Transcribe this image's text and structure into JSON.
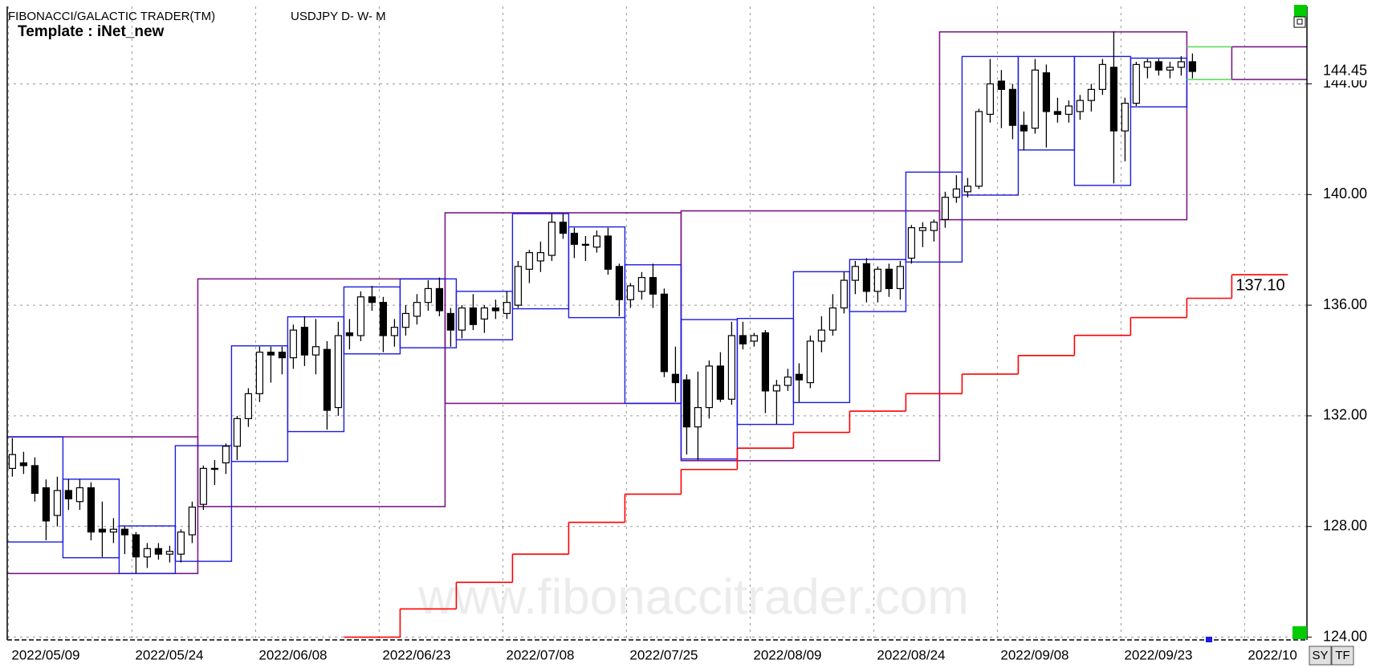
{
  "chart_data": {
    "type": "candlestick",
    "title": "FIBONACCI/GALACTIC TRADER(TM)",
    "symbol": "USDJPY D- W- M",
    "template": "Template : iNet_new",
    "watermark": "www.fibonaccitrader.com",
    "categories": [
      "2022/05/09",
      null,
      null,
      null,
      null,
      null,
      null,
      null,
      null,
      null,
      null,
      "2022/05/24",
      null,
      null,
      null,
      null,
      null,
      null,
      null,
      null,
      null,
      null,
      "2022/06/08",
      null,
      null,
      null,
      null,
      null,
      null,
      null,
      null,
      null,
      null,
      "2022/06/23",
      null,
      null,
      null,
      null,
      null,
      null,
      null,
      null,
      null,
      null,
      "2022/07/08",
      null,
      null,
      null,
      null,
      null,
      null,
      null,
      null,
      null,
      null,
      "2022/07/25",
      null,
      null,
      null,
      null,
      null,
      null,
      null,
      null,
      null,
      null,
      "2022/08/09",
      null,
      null,
      null,
      null,
      null,
      null,
      null,
      null,
      null,
      null,
      "2022/08/24",
      null,
      null,
      null,
      null,
      null,
      null,
      null,
      null,
      null,
      null,
      "2022/09/08",
      null,
      null,
      null,
      null,
      null,
      null,
      null,
      null,
      null,
      null,
      "2022/09/23",
      null,
      null,
      null,
      null,
      null,
      null,
      null,
      null,
      null,
      null,
      "2022/10",
      null,
      null,
      null,
      null,
      null
    ],
    "open": [
      130.1,
      130.3,
      130.2,
      129.4,
      128.4,
      129.3,
      128.9,
      129.4,
      127.9,
      127.8,
      127.9,
      127.7,
      126.9,
      127.2,
      127.0,
      127.0,
      127.7,
      128.8,
      130.1,
      130.3,
      130.9,
      131.9,
      132.8,
      134.3,
      134.3,
      134.1,
      135.2,
      134.2,
      134.4,
      132.3,
      135.0,
      134.9,
      136.3,
      136.1,
      134.9,
      135.2,
      135.6,
      136.1,
      136.6,
      135.7,
      135.1,
      135.9,
      135.5,
      135.9,
      135.7,
      136.0,
      137.3,
      137.6,
      137.8,
      139.0,
      138.6,
      138.2,
      138.1,
      138.5,
      137.4,
      136.2,
      136.5,
      137.0,
      136.4,
      133.5,
      133.3,
      131.6,
      132.3,
      133.8,
      132.6,
      134.9,
      134.7,
      135.0,
      132.9,
      133.1,
      133.5,
      133.2,
      134.7,
      135.1,
      135.9,
      136.9,
      137.5,
      136.5,
      137.3,
      136.6,
      137.7,
      138.7,
      138.7,
      139.1,
      139.9,
      140.1,
      140.3,
      142.9,
      144.1,
      143.8,
      142.5,
      142.4,
      144.4,
      143.0,
      142.9,
      143.0,
      143.4,
      143.8,
      144.6,
      142.3,
      143.3,
      144.6,
      144.8,
      144.5,
      144.6,
      144.8,
      null,
      null,
      null,
      null,
      null,
      null,
      null,
      null,
      null,
      null
    ],
    "high": [
      131.2,
      130.7,
      130.5,
      129.7,
      129.8,
      129.7,
      129.7,
      129.6,
      128.9,
      128.3,
      128.0,
      127.8,
      127.4,
      127.4,
      127.3,
      127.9,
      128.9,
      130.2,
      130.4,
      131.0,
      132.0,
      133.0,
      134.5,
      134.5,
      134.5,
      135.3,
      135.6,
      135.5,
      134.7,
      135.4,
      135.5,
      136.5,
      136.7,
      136.3,
      135.5,
      136.0,
      136.4,
      136.9,
      137.0,
      135.9,
      136.0,
      136.4,
      136.0,
      136.2,
      136.5,
      137.6,
      138.0,
      138.3,
      139.3,
      139.3,
      138.8,
      138.5,
      138.7,
      138.8,
      137.5,
      136.8,
      137.2,
      137.5,
      136.6,
      134.5,
      133.5,
      133.6,
      134.0,
      134.3,
      135.4,
      135.4,
      135.0,
      135.1,
      133.3,
      133.7,
      133.9,
      134.9,
      135.6,
      136.4,
      137.2,
      137.6,
      137.7,
      137.4,
      137.5,
      137.6,
      138.9,
      139.0,
      139.1,
      140.1,
      140.7,
      140.6,
      143.1,
      144.9,
      144.5,
      144.0,
      143.0,
      144.9,
      144.7,
      143.5,
      143.4,
      143.6,
      144.0,
      144.9,
      145.9,
      143.5,
      144.8,
      144.9,
      144.9,
      144.8,
      145.0,
      145.1,
      null,
      null,
      null,
      null,
      null,
      null,
      null,
      null,
      null,
      null
    ],
    "low": [
      129.8,
      129.9,
      128.9,
      127.5,
      128.0,
      128.6,
      128.6,
      127.5,
      126.9,
      127.4,
      127.0,
      126.3,
      126.5,
      126.8,
      126.7,
      126.7,
      127.4,
      128.6,
      129.5,
      129.9,
      130.4,
      131.6,
      132.5,
      133.2,
      133.5,
      133.7,
      133.8,
      133.5,
      131.5,
      132.0,
      134.4,
      134.7,
      135.8,
      134.3,
      134.5,
      134.9,
      135.3,
      135.8,
      135.6,
      134.5,
      134.8,
      135.1,
      135.0,
      135.5,
      135.5,
      135.9,
      136.8,
      137.2,
      137.6,
      138.4,
      137.7,
      137.6,
      137.9,
      137.1,
      135.6,
      135.9,
      136.2,
      135.9,
      133.4,
      132.5,
      130.6,
      130.4,
      131.9,
      132.5,
      132.4,
      134.4,
      134.5,
      132.1,
      131.7,
      132.9,
      132.5,
      133.0,
      134.3,
      134.9,
      135.7,
      136.4,
      136.1,
      136.1,
      136.3,
      136.2,
      137.5,
      138.1,
      138.3,
      138.8,
      139.7,
      139.9,
      140.2,
      142.6,
      142.4,
      142.0,
      141.6,
      142.2,
      141.7,
      142.6,
      142.6,
      142.7,
      143.0,
      143.6,
      140.4,
      141.2,
      143.2,
      144.2,
      144.3,
      144.2,
      144.3,
      144.2,
      null,
      null,
      null,
      null,
      null,
      null,
      null,
      null,
      null,
      null
    ],
    "close": [
      130.6,
      130.2,
      129.2,
      128.2,
      129.3,
      129.0,
      129.4,
      127.8,
      127.8,
      127.9,
      127.7,
      126.9,
      127.2,
      127.0,
      127.1,
      127.8,
      128.7,
      130.1,
      130.1,
      130.9,
      131.9,
      132.8,
      134.3,
      134.2,
      134.1,
      135.1,
      134.2,
      134.5,
      132.2,
      134.9,
      134.9,
      136.3,
      136.1,
      134.9,
      135.2,
      135.7,
      136.1,
      136.6,
      135.8,
      135.1,
      135.9,
      135.3,
      135.9,
      135.8,
      136.1,
      137.4,
      137.9,
      137.9,
      139.0,
      138.6,
      138.2,
      138.2,
      138.5,
      137.3,
      136.2,
      136.7,
      137.0,
      136.4,
      133.6,
      133.2,
      131.6,
      132.3,
      133.8,
      132.6,
      134.9,
      134.6,
      134.9,
      132.9,
      133.1,
      133.4,
      133.3,
      134.7,
      135.1,
      135.9,
      136.9,
      137.4,
      136.5,
      137.3,
      136.6,
      137.4,
      138.8,
      138.8,
      139.0,
      139.9,
      140.2,
      140.3,
      143.0,
      144.0,
      143.8,
      142.5,
      142.3,
      144.5,
      143.0,
      142.9,
      143.2,
      143.4,
      143.8,
      144.7,
      142.3,
      143.3,
      144.7,
      144.8,
      144.5,
      144.6,
      144.8,
      144.45,
      null,
      null,
      null,
      null,
      null,
      null,
      null,
      null,
      null,
      null
    ],
    "ylim": [
      123.9,
      146.8
    ],
    "yticks": [
      {
        "value": 124,
        "label": "124.00"
      },
      {
        "value": 128,
        "label": "128.00"
      },
      {
        "value": 132,
        "label": "132.00"
      },
      {
        "value": 136,
        "label": "136.00"
      },
      {
        "value": 140,
        "label": "140.00"
      },
      {
        "value": 144,
        "label": "144.00"
      }
    ],
    "grid": true,
    "up_color": "#ffffff",
    "down_color": "#000000",
    "weekly_color": "#1c1ce0",
    "weekly_boxes": [
      {
        "start": 0,
        "end": 4,
        "high": 131.24,
        "low": 127.44
      },
      {
        "start": 5,
        "end": 9,
        "high": 129.71,
        "low": 126.87
      },
      {
        "start": 10,
        "end": 14,
        "high": 128.02,
        "low": 126.3
      },
      {
        "start": 15,
        "end": 19,
        "high": 130.92,
        "low": 126.74
      },
      {
        "start": 20,
        "end": 24,
        "high": 134.53,
        "low": 130.35
      },
      {
        "start": 25,
        "end": 29,
        "high": 135.58,
        "low": 131.43
      },
      {
        "start": 30,
        "end": 34,
        "high": 136.66,
        "low": 134.24
      },
      {
        "start": 35,
        "end": 39,
        "high": 136.95,
        "low": 134.46
      },
      {
        "start": 40,
        "end": 44,
        "high": 136.5,
        "low": 134.75
      },
      {
        "start": 45,
        "end": 49,
        "high": 139.31,
        "low": 135.87
      },
      {
        "start": 50,
        "end": 54,
        "high": 138.83,
        "low": 135.55
      },
      {
        "start": 55,
        "end": 59,
        "high": 137.46,
        "low": 132.45
      },
      {
        "start": 60,
        "end": 64,
        "high": 135.48,
        "low": 130.44
      },
      {
        "start": 65,
        "end": 69,
        "high": 135.52,
        "low": 131.69
      },
      {
        "start": 70,
        "end": 74,
        "high": 137.21,
        "low": 132.48
      },
      {
        "start": 75,
        "end": 79,
        "high": 137.65,
        "low": 135.77
      },
      {
        "start": 80,
        "end": 84,
        "high": 140.81,
        "low": 137.56
      },
      {
        "start": 85,
        "end": 89,
        "high": 144.99,
        "low": 139.98
      },
      {
        "start": 90,
        "end": 94,
        "high": 144.99,
        "low": 141.61
      },
      {
        "start": 95,
        "end": 99,
        "high": 144.99,
        "low": 140.33
      },
      {
        "start": 100,
        "end": 104,
        "high": 144.93,
        "low": 143.17
      }
    ],
    "monthly_color": "#7b1a86",
    "monthly_boxes": [
      {
        "start": -5,
        "end": 16,
        "high": 131.24,
        "low": 126.3
      },
      {
        "start": 17,
        "end": 38,
        "high": 136.95,
        "low": 128.72
      },
      {
        "start": 39,
        "end": 59,
        "high": 139.34,
        "low": 132.45
      },
      {
        "start": 60,
        "end": 82,
        "high": 139.41,
        "low": 130.38
      },
      {
        "start": 83,
        "end": 104,
        "high": 145.88,
        "low": 139.09
      },
      {
        "start": 109,
        "end": 120,
        "high": 145.34,
        "low": 144.16
      }
    ],
    "projection": {
      "color": "#5fdc5f",
      "start": 105,
      "end": 108,
      "high": 145.34,
      "low": 144.16
    },
    "stop_line": {
      "color": "#ff0000",
      "label": "137.10",
      "steps": [
        {
          "start": 30,
          "end": 34,
          "value": 124.0
        },
        {
          "start": 35,
          "end": 39,
          "value": 125.02
        },
        {
          "start": 40,
          "end": 44,
          "value": 125.98
        },
        {
          "start": 45,
          "end": 49,
          "value": 127.0
        },
        {
          "start": 50,
          "end": 54,
          "value": 128.15
        },
        {
          "start": 55,
          "end": 59,
          "value": 129.17
        },
        {
          "start": 60,
          "end": 64,
          "value": 130.06
        },
        {
          "start": 65,
          "end": 69,
          "value": 130.83
        },
        {
          "start": 70,
          "end": 74,
          "value": 131.4
        },
        {
          "start": 75,
          "end": 79,
          "value": 132.17
        },
        {
          "start": 80,
          "end": 84,
          "value": 132.8
        },
        {
          "start": 85,
          "end": 89,
          "value": 133.51
        },
        {
          "start": 90,
          "end": 94,
          "value": 134.18
        },
        {
          "start": 95,
          "end": 99,
          "value": 134.91
        },
        {
          "start": 100,
          "end": 104,
          "value": 135.55
        },
        {
          "start": 105,
          "end": 108,
          "value": 136.25
        },
        {
          "start": 109,
          "end": 113,
          "value": 137.1
        }
      ]
    }
  },
  "toolbar": [
    "SY",
    "TF"
  ]
}
